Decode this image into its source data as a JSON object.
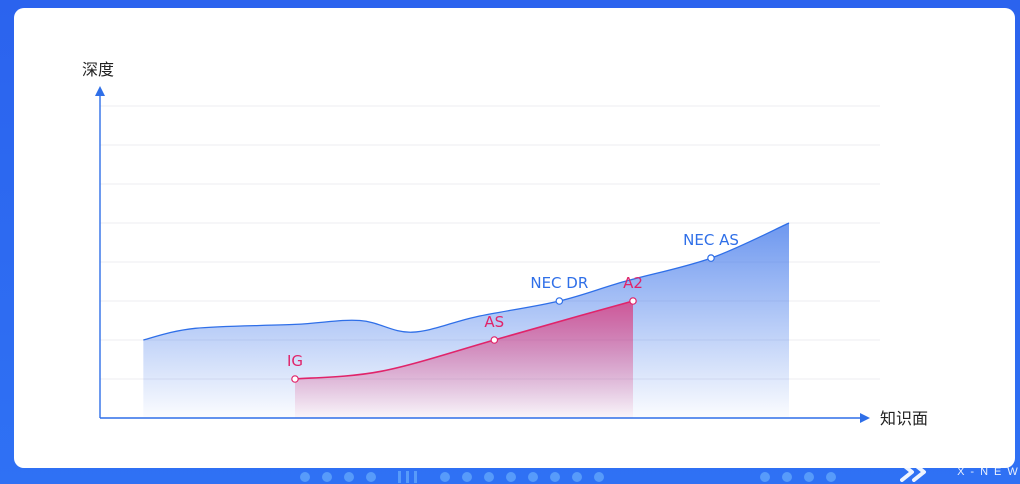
{
  "chart_data": {
    "type": "area",
    "title": "",
    "xlabel": "知识面",
    "ylabel": "深度",
    "ylim": [
      0,
      8
    ],
    "grid": true,
    "legend": "none",
    "series": [
      {
        "name": "",
        "color": "#2f6fe8",
        "points": [
          {
            "x": 1.0,
            "y": 2.0
          },
          {
            "x": 2.2,
            "y": 2.3
          },
          {
            "x": 4.5,
            "y": 2.4
          },
          {
            "x": 6.0,
            "y": 2.5
          },
          {
            "x": 7.2,
            "y": 2.2
          },
          {
            "x": 8.7,
            "y": 2.6
          },
          {
            "x": 10.6,
            "y": 3.0
          },
          {
            "x": 12.1,
            "y": 3.5
          },
          {
            "x": 14.1,
            "y": 4.1
          },
          {
            "x": 15.9,
            "y": 5.0
          }
        ],
        "labels": [
          {
            "text": "NEC DR",
            "x": 10.6,
            "y": 3.0
          },
          {
            "text": "NEC AS",
            "x": 14.1,
            "y": 4.1
          }
        ]
      },
      {
        "name": "",
        "color": "#e0246a",
        "points": [
          {
            "x": 4.5,
            "y": 1.0
          },
          {
            "x": 6.5,
            "y": 1.2
          },
          {
            "x": 9.1,
            "y": 2.0
          },
          {
            "x": 11.0,
            "y": 2.6
          },
          {
            "x": 12.3,
            "y": 3.0
          }
        ],
        "labels": [
          {
            "text": "IG",
            "x": 4.5,
            "y": 1.0
          },
          {
            "text": "AS",
            "x": 9.1,
            "y": 2.0
          },
          {
            "text": "A2",
            "x": 12.3,
            "y": 3.0
          }
        ]
      }
    ]
  },
  "colors": {
    "axis": "#2f6fe8",
    "grid": "#ececf1",
    "blue_series": "#2f6fe8",
    "pink_series": "#e0246a"
  },
  "icons": {
    "y_axis_arrow": "up-arrow",
    "x_axis_arrow": "right-arrow",
    "brand": "x-new-logo"
  },
  "brand": {
    "logo_text": "X-NEW"
  }
}
